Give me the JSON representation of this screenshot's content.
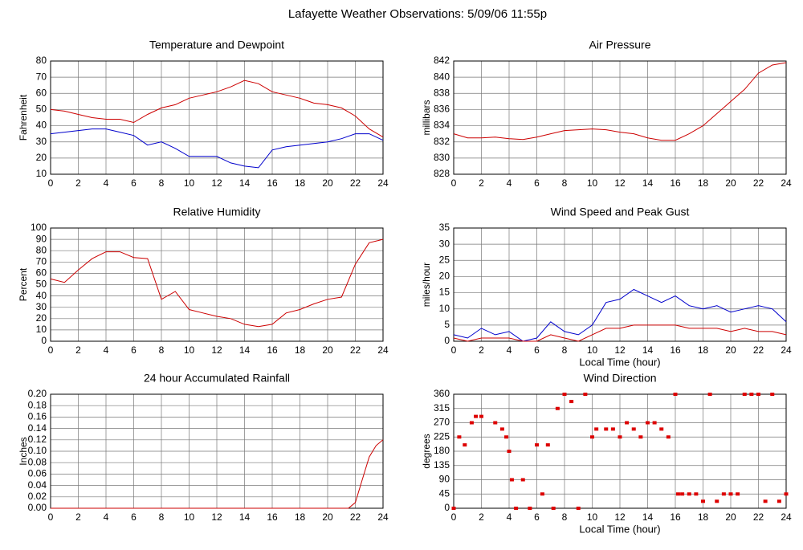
{
  "title": "Lafayette Weather Observations: 5/09/06 11:55p",
  "chart_data": [
    {
      "type": "line",
      "title": "Temperature and Dewpoint",
      "ylabel": "Fahrenheit",
      "x": [
        0,
        1,
        2,
        3,
        4,
        5,
        6,
        7,
        8,
        9,
        10,
        11,
        12,
        13,
        14,
        15,
        16,
        17,
        18,
        19,
        20,
        21,
        22,
        23,
        24
      ],
      "series": [
        {
          "color": "#cc0000",
          "values": [
            50,
            49,
            47,
            45,
            44,
            44,
            42,
            47,
            51,
            53,
            57,
            59,
            61,
            64,
            68,
            66,
            61,
            59,
            57,
            54,
            53,
            51,
            46,
            38,
            33
          ]
        },
        {
          "color": "#0000cc",
          "values": [
            35,
            36,
            37,
            38,
            38,
            36,
            34,
            28,
            30,
            26,
            21,
            21,
            21,
            17,
            15,
            14,
            25,
            27,
            28,
            29,
            30,
            32,
            35,
            35,
            31
          ]
        }
      ],
      "xlim": [
        0,
        24
      ],
      "xticks": [
        0,
        2,
        4,
        6,
        8,
        10,
        12,
        14,
        16,
        18,
        20,
        22,
        24
      ],
      "ylim": [
        10,
        80
      ],
      "yticks": [
        10,
        20,
        30,
        40,
        50,
        60,
        70,
        80
      ],
      "grid": true
    },
    {
      "type": "line",
      "title": "Air Pressure",
      "ylabel": "millibars",
      "x": [
        0,
        1,
        2,
        3,
        4,
        5,
        6,
        7,
        8,
        9,
        10,
        11,
        12,
        13,
        14,
        15,
        16,
        17,
        18,
        19,
        20,
        21,
        22,
        23,
        24
      ],
      "series": [
        {
          "color": "#cc0000",
          "values": [
            833,
            832.5,
            832.5,
            832.6,
            832.4,
            832.3,
            832.6,
            833,
            833.4,
            833.5,
            833.6,
            833.5,
            833.2,
            833,
            832.5,
            832.2,
            832.2,
            833,
            834,
            835.5,
            837,
            838.5,
            840.5,
            841.5,
            841.8
          ]
        }
      ],
      "xlim": [
        0,
        24
      ],
      "xticks": [
        0,
        2,
        4,
        6,
        8,
        10,
        12,
        14,
        16,
        18,
        20,
        22,
        24
      ],
      "ylim": [
        828,
        842
      ],
      "yticks": [
        828,
        830,
        832,
        834,
        836,
        838,
        840,
        842
      ],
      "grid": true
    },
    {
      "type": "line",
      "title": "Relative Humidity",
      "ylabel": "Percent",
      "x": [
        0,
        1,
        2,
        3,
        4,
        5,
        6,
        7,
        8,
        9,
        10,
        11,
        12,
        13,
        14,
        15,
        16,
        17,
        18,
        19,
        20,
        21,
        22,
        23,
        24
      ],
      "series": [
        {
          "color": "#cc0000",
          "values": [
            55,
            52,
            63,
            73,
            79,
            79,
            74,
            73,
            37,
            44,
            28,
            25,
            22,
            20,
            15,
            13,
            15,
            25,
            28,
            33,
            37,
            39,
            68,
            87,
            90
          ]
        }
      ],
      "xlim": [
        0,
        24
      ],
      "xticks": [
        0,
        2,
        4,
        6,
        8,
        10,
        12,
        14,
        16,
        18,
        20,
        22,
        24
      ],
      "ylim": [
        0,
        100
      ],
      "yticks": [
        0,
        10,
        20,
        30,
        40,
        50,
        60,
        70,
        80,
        90,
        100
      ],
      "grid": true
    },
    {
      "type": "line",
      "title": "Wind Speed and Peak Gust",
      "ylabel": "miles/hour",
      "xlabel": "Local Time (hour)",
      "x": [
        0,
        1,
        2,
        3,
        4,
        5,
        6,
        7,
        8,
        9,
        10,
        11,
        12,
        13,
        14,
        15,
        16,
        17,
        18,
        19,
        20,
        21,
        22,
        23,
        24
      ],
      "series": [
        {
          "color": "#0000cc",
          "values": [
            2,
            1,
            4,
            2,
            3,
            0,
            1,
            6,
            3,
            2,
            5,
            12,
            13,
            16,
            14,
            12,
            14,
            11,
            10,
            11,
            9,
            10,
            11,
            10,
            6
          ]
        },
        {
          "color": "#cc0000",
          "values": [
            1,
            0,
            1,
            1,
            1,
            0,
            0,
            2,
            1,
            0,
            2,
            4,
            4,
            5,
            5,
            5,
            5,
            4,
            4,
            4,
            3,
            4,
            3,
            3,
            2
          ]
        }
      ],
      "xlim": [
        0,
        24
      ],
      "xticks": [
        0,
        2,
        4,
        6,
        8,
        10,
        12,
        14,
        16,
        18,
        20,
        22,
        24
      ],
      "ylim": [
        0,
        35
      ],
      "yticks": [
        0,
        5,
        10,
        15,
        20,
        25,
        30,
        35
      ],
      "grid": true
    },
    {
      "type": "line",
      "title": "24 hour Accumulated Rainfall",
      "ylabel": "Inches",
      "x": [
        0,
        21.5,
        22,
        22.5,
        23,
        23.5,
        24
      ],
      "series": [
        {
          "color": "#cc0000",
          "values": [
            0,
            0,
            0.01,
            0.05,
            0.09,
            0.11,
            0.12
          ]
        }
      ],
      "xlim": [
        0,
        24
      ],
      "xticks": [
        0,
        2,
        4,
        6,
        8,
        10,
        12,
        14,
        16,
        18,
        20,
        22,
        24
      ],
      "ylim": [
        0,
        0.2
      ],
      "yticks": [
        {
          "value": 0,
          "label": "0.00"
        },
        {
          "value": 0.02,
          "label": "0.02"
        },
        {
          "value": 0.04,
          "label": "0.04"
        },
        {
          "value": 0.06,
          "label": "0.06"
        },
        {
          "value": 0.08,
          "label": "0.08"
        },
        {
          "value": 0.1,
          "label": "0.10"
        },
        {
          "value": 0.12,
          "label": "0.12"
        },
        {
          "value": 0.14,
          "label": "0.14"
        },
        {
          "value": 0.16,
          "label": "0.16"
        },
        {
          "value": 0.18,
          "label": "0.18"
        },
        {
          "value": 0.2,
          "label": "0.20"
        }
      ],
      "grid": true
    },
    {
      "type": "scatter",
      "title": "Wind Direction",
      "ylabel": "degrees",
      "xlabel": "Local Time (hour)",
      "color": "#dd0000",
      "x": [
        0,
        0.4,
        0.8,
        1.3,
        1.6,
        2,
        3,
        3.5,
        3.8,
        4,
        4.2,
        4.5,
        5,
        5.5,
        6,
        6.4,
        6.8,
        7.2,
        7.5,
        8,
        8.5,
        9,
        9.5,
        10,
        10.3,
        11,
        11.5,
        12,
        12.5,
        13,
        13.5,
        14,
        14.5,
        15,
        15.5,
        16,
        16.2,
        16.5,
        17,
        17.5,
        18,
        18.5,
        19,
        19.5,
        20,
        20.5,
        21,
        21.5,
        22,
        22.5,
        23,
        23.5,
        24
      ],
      "values": [
        0,
        225,
        200,
        270,
        290,
        290,
        270,
        250,
        225,
        180,
        90,
        0,
        90,
        0,
        200,
        45,
        200,
        0,
        315,
        360,
        337,
        0,
        360,
        225,
        250,
        250,
        250,
        225,
        270,
        250,
        225,
        270,
        270,
        250,
        225,
        360,
        45,
        45,
        45,
        45,
        22,
        360,
        22,
        45,
        45,
        45,
        360,
        360,
        360,
        22,
        360,
        22,
        45
      ],
      "xlim": [
        0,
        24
      ],
      "xticks": [
        0,
        2,
        4,
        6,
        8,
        10,
        12,
        14,
        16,
        18,
        20,
        22,
        24
      ],
      "ylim": [
        0,
        360
      ],
      "yticks": [
        0,
        45,
        90,
        135,
        180,
        225,
        270,
        315,
        360
      ],
      "grid": true
    }
  ]
}
